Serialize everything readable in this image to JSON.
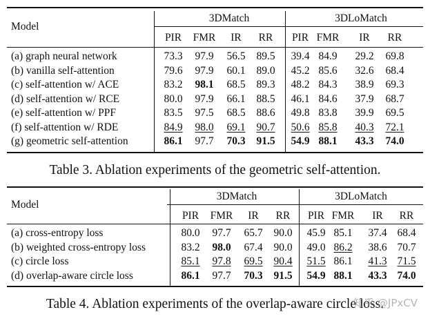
{
  "table3": {
    "model_header": "Model",
    "group1": "3DMatch",
    "group2": "3DLoMatch",
    "metrics": [
      "PIR",
      "FMR",
      "IR",
      "RR",
      "PIR",
      "FMR",
      "IR",
      "RR"
    ],
    "rows": [
      {
        "label": "(a) graph neural network",
        "values": [
          "73.3",
          "97.9",
          "56.5",
          "89.5",
          "39.4",
          "84.9",
          "29.2",
          "69.8"
        ],
        "bold": [],
        "underline": []
      },
      {
        "label": "(b) vanilla self-attention",
        "values": [
          "79.6",
          "97.9",
          "60.1",
          "89.0",
          "45.2",
          "85.6",
          "32.6",
          "68.4"
        ],
        "bold": [],
        "underline": []
      },
      {
        "label": "(c) self-attention w/ ACE",
        "values": [
          "83.2",
          "98.1",
          "68.5",
          "89.3",
          "48.2",
          "84.3",
          "38.9",
          "69.3"
        ],
        "bold": [
          1
        ],
        "underline": []
      },
      {
        "label": "(d) self-attention w/ RCE",
        "values": [
          "80.0",
          "97.9",
          "66.1",
          "88.5",
          "46.1",
          "84.6",
          "37.9",
          "68.7"
        ],
        "bold": [],
        "underline": []
      },
      {
        "label": "(e) self-attention w/ PPF",
        "values": [
          "83.5",
          "97.5",
          "68.5",
          "88.6",
          "49.8",
          "83.8",
          "39.9",
          "69.5"
        ],
        "bold": [],
        "underline": []
      },
      {
        "label": "(f) self-attention w/ RDE",
        "values": [
          "84.9",
          "98.0",
          "69.1",
          "90.7",
          "50.6",
          "85.8",
          "40.3",
          "72.1"
        ],
        "bold": [],
        "underline": [
          0,
          1,
          2,
          3,
          4,
          5,
          6,
          7
        ]
      },
      {
        "label": "(g) geometric self-attention",
        "values": [
          "86.1",
          "97.7",
          "70.3",
          "91.5",
          "54.9",
          "88.1",
          "43.3",
          "74.0"
        ],
        "bold": [
          0,
          2,
          3,
          4,
          5,
          6,
          7
        ],
        "underline": []
      }
    ],
    "caption": "Table 3. Ablation experiments of the geometric self-attention."
  },
  "table4": {
    "model_header": "Model",
    "group1": "3DMatch",
    "group2": "3DLoMatch",
    "metrics": [
      "PIR",
      "FMR",
      "IR",
      "RR",
      "PIR",
      "FMR",
      "IR",
      "RR"
    ],
    "rows": [
      {
        "label": "(a) cross-entropy loss",
        "values": [
          "80.0",
          "97.7",
          "65.7",
          "90.0",
          "45.9",
          "85.1",
          "37.4",
          "68.4"
        ],
        "bold": [],
        "underline": []
      },
      {
        "label": "(b) weighted cross-entropy loss",
        "values": [
          "83.2",
          "98.0",
          "67.4",
          "90.0",
          "49.0",
          "86.2",
          "38.6",
          "70.7"
        ],
        "bold": [
          1
        ],
        "underline": [
          5
        ]
      },
      {
        "label": "(c) circle loss",
        "values": [
          "85.1",
          "97.8",
          "69.5",
          "90.4",
          "51.5",
          "86.1",
          "41.3",
          "71.5"
        ],
        "bold": [],
        "underline": [
          0,
          1,
          2,
          3,
          4,
          6,
          7
        ]
      },
      {
        "label": "(d) overlap-aware circle loss",
        "values": [
          "86.1",
          "97.7",
          "70.3",
          "91.5",
          "54.9",
          "88.1",
          "43.3",
          "74.0"
        ],
        "bold": [
          0,
          2,
          3,
          4,
          5,
          6,
          7
        ],
        "underline": []
      }
    ],
    "caption": "Table 4. Ablation experiments of the overlap-aware circle loss."
  },
  "watermark": "知乎 @JPxCV"
}
